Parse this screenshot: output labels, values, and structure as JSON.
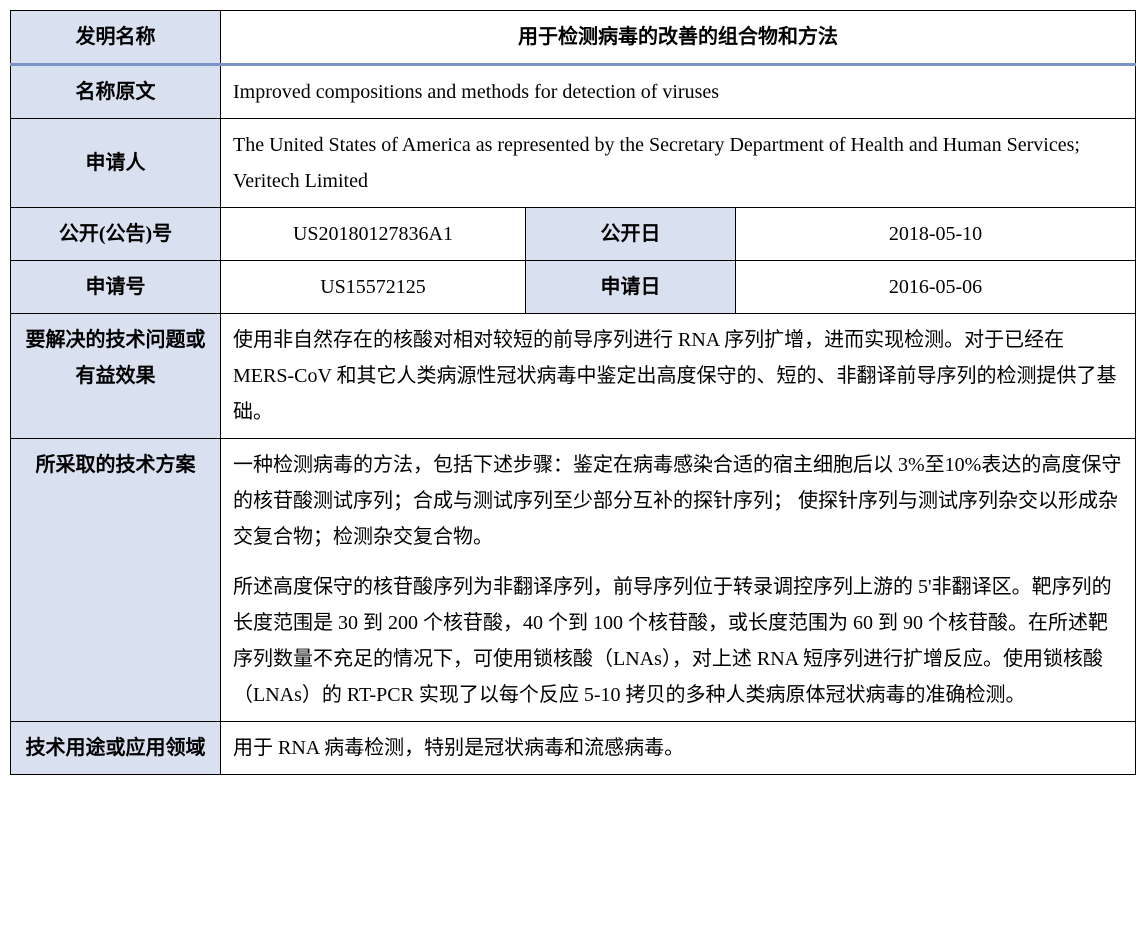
{
  "rows": {
    "invention_name": {
      "label": "发明名称",
      "value": "用于检测病毒的改善的组合物和方法"
    },
    "original_name": {
      "label": "名称原文",
      "value": "Improved compositions and methods for detection of viruses"
    },
    "applicant": {
      "label": "申请人",
      "value": "The United States of America as represented by the Secretary Department of Health and Human Services; Veritech Limited"
    },
    "publication": {
      "number_label": "公开(公告)号",
      "number_value": "US20180127836A1",
      "date_label": "公开日",
      "date_value": "2018-05-10"
    },
    "application": {
      "number_label": "申请号",
      "number_value": "US15572125",
      "date_label": "申请日",
      "date_value": "2016-05-06"
    },
    "problem": {
      "label": "要解决的技术问题或有益效果",
      "value": "使用非自然存在的核酸对相对较短的前导序列进行 RNA 序列扩增，进而实现检测。对于已经在 MERS-CoV 和其它人类病源性冠状病毒中鉴定出高度保守的、短的、非翻译前导序列的检测提供了基础。"
    },
    "solution": {
      "label": "所采取的技术方案",
      "para1": "一种检测病毒的方法，包括下述步骤：鉴定在病毒感染合适的宿主细胞后以 3%至10%表达的高度保守的核苷酸测试序列；合成与测试序列至少部分互补的探针序列；  使探针序列与测试序列杂交以形成杂交复合物；检测杂交复合物。",
      "para2": "所述高度保守的核苷酸序列为非翻译序列，前导序列位于转录调控序列上游的 5'非翻译区。靶序列的长度范围是 30 到 200 个核苷酸，40 个到 100 个核苷酸，或长度范围为 60 到 90 个核苷酸。在所述靶序列数量不充足的情况下，可使用锁核酸（LNAs），对上述 RNA 短序列进行扩增反应。使用锁核酸（LNAs）的 RT-PCR 实现了以每个反应 5-10 拷贝的多种人类病原体冠状病毒的准确检测。"
    },
    "usage": {
      "label": "技术用途或应用领域",
      "value": "用于 RNA 病毒检测，特别是冠状病毒和流感病毒。"
    }
  },
  "colors": {
    "header_bg": "#d9e1f0",
    "border": "#000000",
    "top_accent": "#7a94c8",
    "text": "#000000",
    "content_bg": "#ffffff"
  }
}
